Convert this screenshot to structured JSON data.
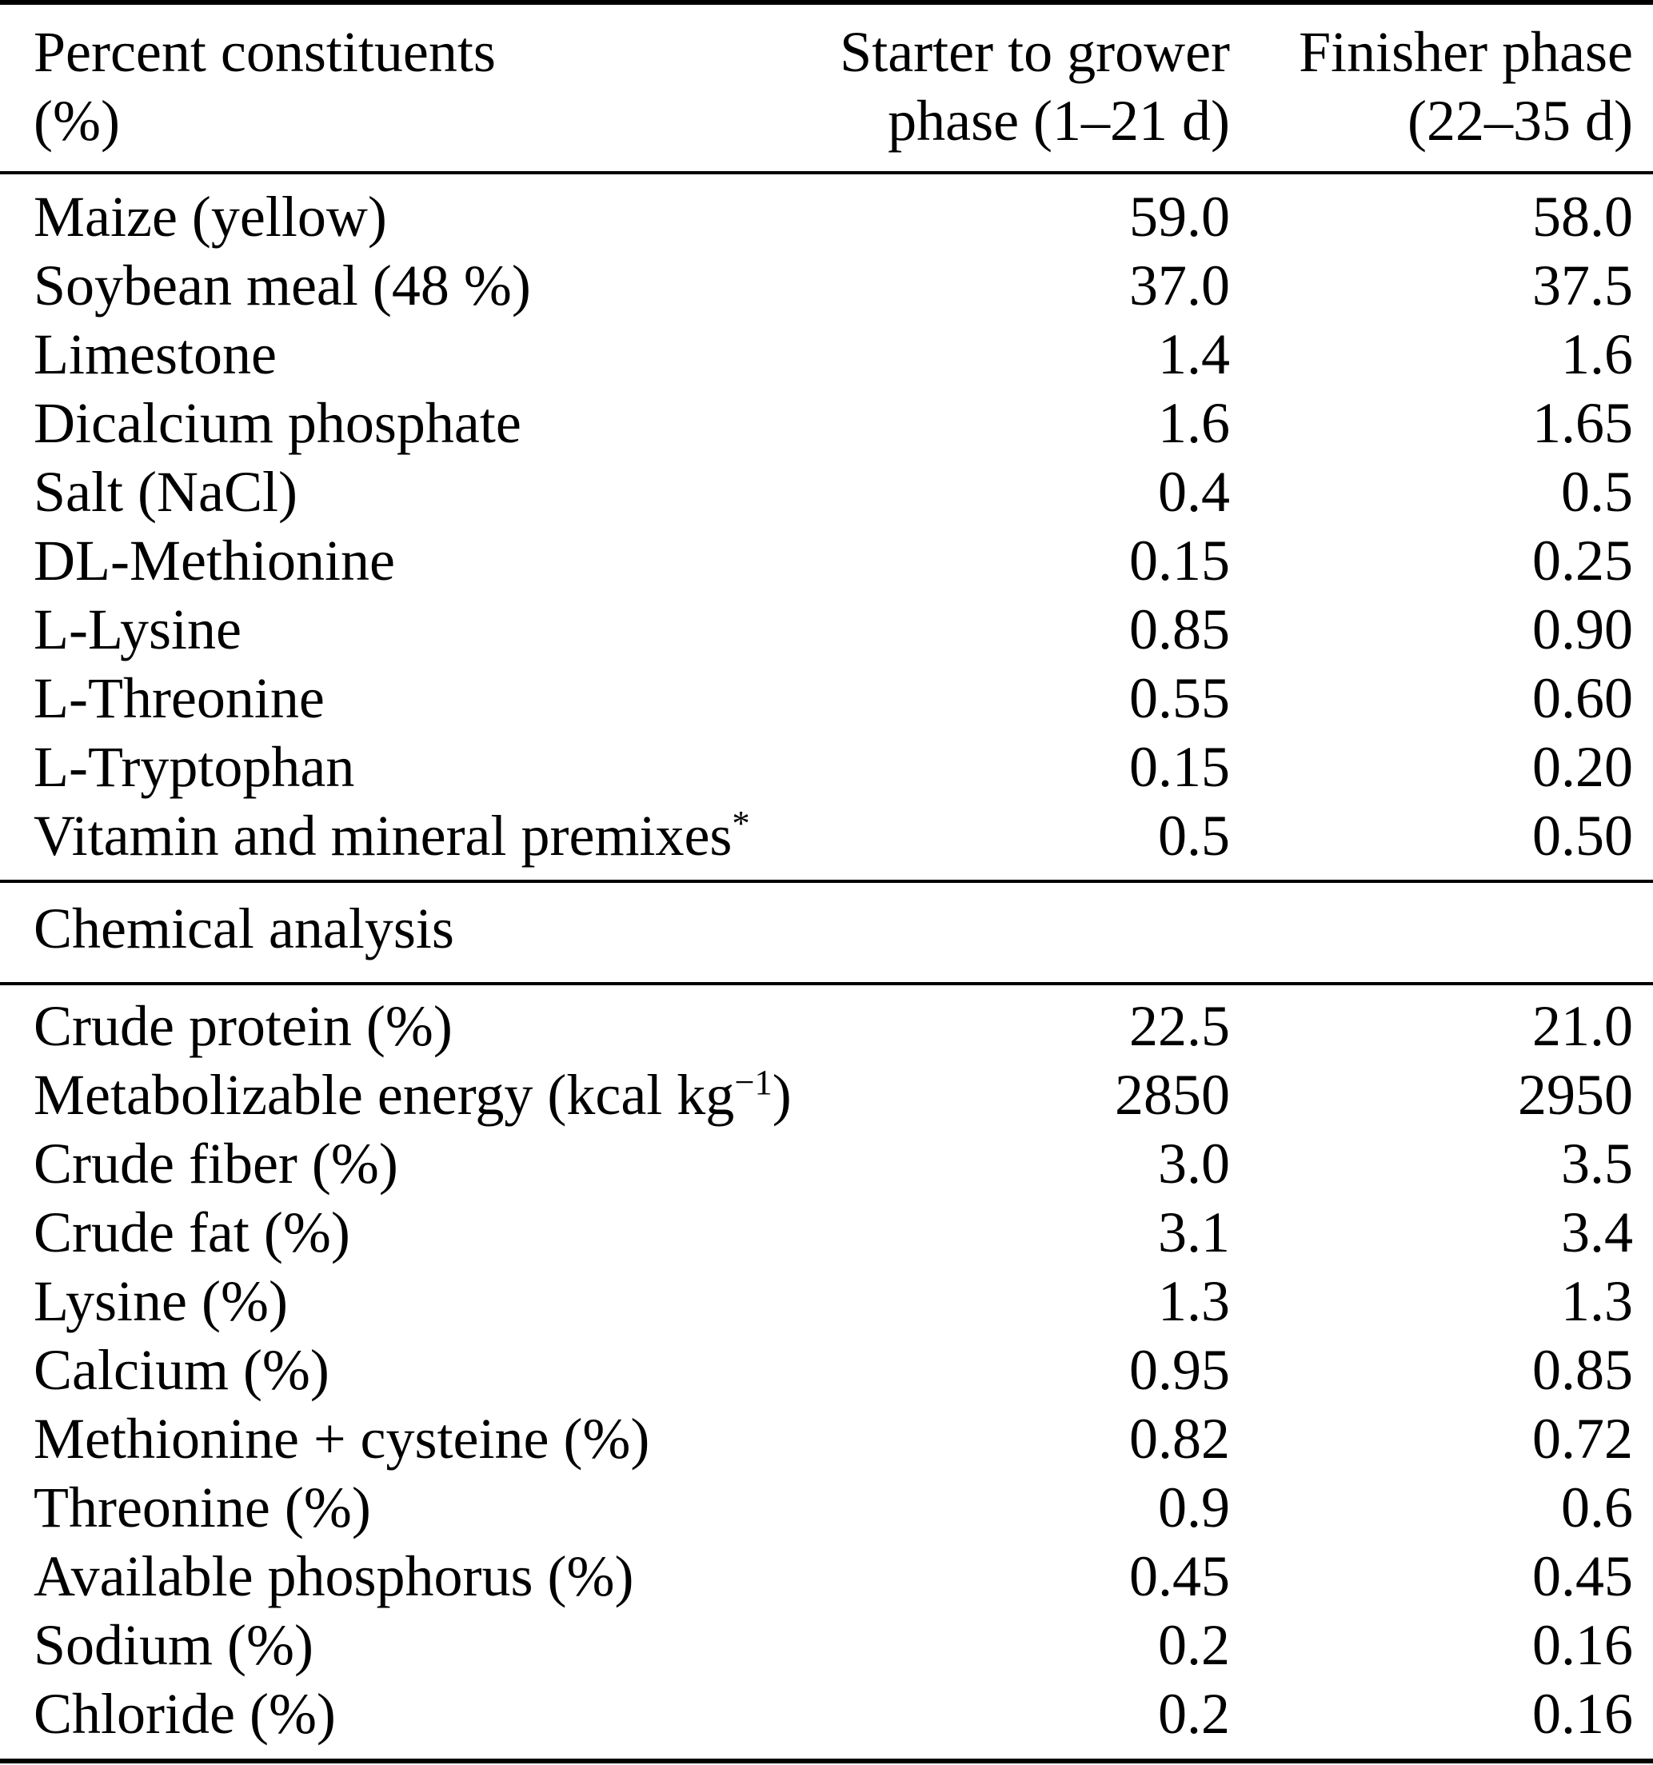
{
  "table": {
    "header": {
      "col1_line1": "Percent constituents",
      "col1_line2": "(%)",
      "col2_line1": "Starter to grower",
      "col2_line2": "phase (1–21 d)",
      "col3_line1": "Finisher phase",
      "col3_line2": "(22–35 d)"
    },
    "sections": [
      {
        "name": "ingredients",
        "rows": [
          {
            "label": "Maize (yellow)",
            "starter": "59.0",
            "finisher": "58.0"
          },
          {
            "label": "Soybean meal (48 %)",
            "starter": "37.0",
            "finisher": "37.5"
          },
          {
            "label": "Limestone",
            "starter": "1.4",
            "finisher": "1.6"
          },
          {
            "label": "Dicalcium phosphate",
            "starter": "1.6",
            "finisher": "1.65"
          },
          {
            "label": "Salt (NaCl)",
            "starter": "0.4",
            "finisher": "0.5"
          },
          {
            "label": "DL-Methionine",
            "starter": "0.15",
            "finisher": "0.25"
          },
          {
            "label": "L-Lysine",
            "starter": "0.85",
            "finisher": "0.90"
          },
          {
            "label": "L-Threonine",
            "starter": "0.55",
            "finisher": "0.60"
          },
          {
            "label": "L-Tryptophan",
            "starter": "0.15",
            "finisher": "0.20"
          },
          {
            "label": "Vitamin and mineral premixes",
            "label_sup": "*",
            "starter": "0.5",
            "finisher": "0.50"
          }
        ]
      },
      {
        "name": "chemical-analysis",
        "heading": "Chemical analysis",
        "rows": [
          {
            "label": "Crude protein (%)",
            "starter": "22.5",
            "finisher": "21.0"
          },
          {
            "label": "Metabolizable energy (kcal kg",
            "label_sup": "−1",
            "label_after": ")",
            "starter": "2850",
            "finisher": "2950"
          },
          {
            "label": "Crude fiber (%)",
            "starter": "3.0",
            "finisher": "3.5"
          },
          {
            "label": "Crude fat (%)",
            "starter": "3.1",
            "finisher": "3.4"
          },
          {
            "label": "Lysine (%)",
            "starter": "1.3",
            "finisher": "1.3"
          },
          {
            "label": "Calcium (%)",
            "starter": "0.95",
            "finisher": "0.85"
          },
          {
            "label": "Methionine + cysteine (%)",
            "starter": "0.82",
            "finisher": "0.72"
          },
          {
            "label": "Threonine (%)",
            "starter": "0.9",
            "finisher": "0.6"
          },
          {
            "label": "Available phosphorus (%)",
            "starter": "0.45",
            "finisher": "0.45"
          },
          {
            "label": "Sodium (%)",
            "starter": "0.2",
            "finisher": "0.16"
          },
          {
            "label": "Chloride (%)",
            "starter": "0.2",
            "finisher": "0.16"
          }
        ]
      }
    ]
  }
}
